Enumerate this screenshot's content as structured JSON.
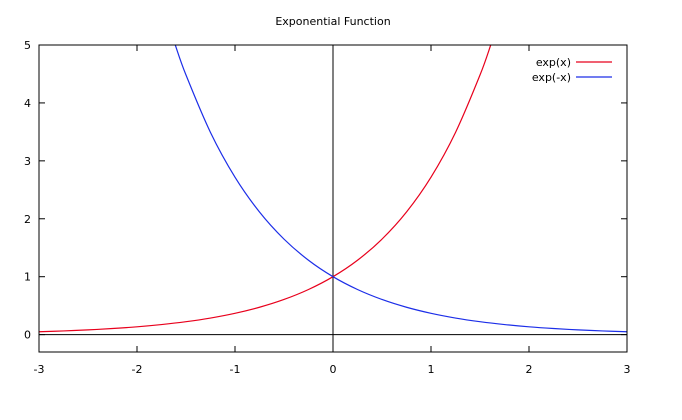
{
  "chart_data": {
    "type": "line",
    "title": "Exponential Function",
    "xlabel": "",
    "ylabel": "",
    "xlim": [
      -3,
      3
    ],
    "ylim": [
      -0.3,
      5
    ],
    "xticks": [
      -3,
      -2,
      -1,
      0,
      1,
      2,
      3
    ],
    "yticks": [
      0,
      1,
      2,
      3,
      4,
      5
    ],
    "grid": false,
    "legend_position": "top-right",
    "zero_axes": true,
    "series": [
      {
        "name": "exp(x)",
        "color": "#e8001c",
        "x": [
          -3.0,
          -2.75,
          -2.5,
          -2.25,
          -2.0,
          -1.75,
          -1.5,
          -1.25,
          -1.0,
          -0.75,
          -0.5,
          -0.25,
          0.0,
          0.25,
          0.5,
          0.75,
          1.0,
          1.25,
          1.5,
          1.6094
        ],
        "y": [
          0.0498,
          0.0639,
          0.0821,
          0.1054,
          0.1353,
          0.1738,
          0.2231,
          0.2865,
          0.3679,
          0.4724,
          0.6065,
          0.7788,
          1.0,
          1.284,
          1.6487,
          2.117,
          2.7183,
          3.4903,
          4.4817,
          5.0
        ]
      },
      {
        "name": "exp(-x)",
        "color": "#1c2ee8",
        "x": [
          -1.6094,
          -1.5,
          -1.25,
          -1.0,
          -0.75,
          -0.5,
          -0.25,
          0.0,
          0.25,
          0.5,
          0.75,
          1.0,
          1.25,
          1.5,
          1.75,
          2.0,
          2.25,
          2.5,
          2.75,
          3.0
        ],
        "y": [
          5.0,
          4.4817,
          3.4903,
          2.7183,
          2.117,
          1.6487,
          1.284,
          1.0,
          0.7788,
          0.6065,
          0.4724,
          0.3679,
          0.2865,
          0.2231,
          0.1738,
          0.1353,
          0.1054,
          0.0821,
          0.0639,
          0.0498
        ]
      }
    ]
  }
}
